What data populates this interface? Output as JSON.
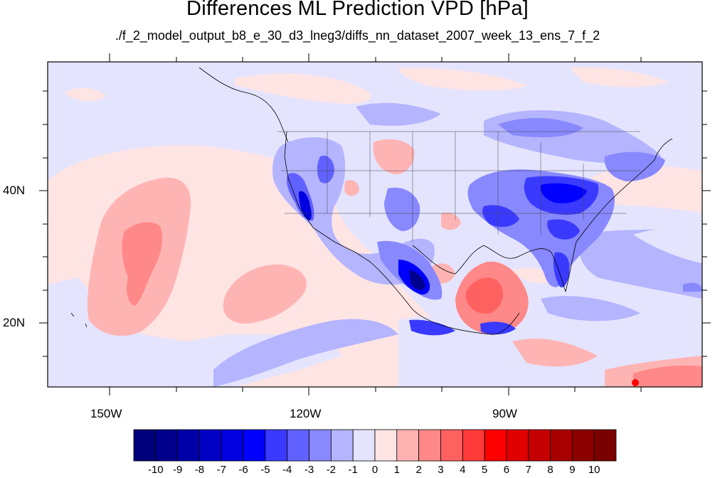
{
  "title": "Differences ML Prediction VPD [hPa]",
  "subtitle": "./f_2_model_output_b8_e_30_d3_lneg3/diffs_nn_dataset_2007_week_13_ens_7_f_2",
  "axes": {
    "lat_labels": [
      "40N",
      "20N"
    ],
    "lon_labels": [
      "150W",
      "120W",
      "90W"
    ]
  },
  "colorbar": {
    "labels": [
      "-10",
      "-9",
      "-8",
      "-7",
      "-6",
      "-5",
      "-4",
      "-3",
      "-2",
      "-1",
      "0",
      "1",
      "2",
      "3",
      "4",
      "5",
      "6",
      "7",
      "8",
      "9",
      "10"
    ],
    "colors": [
      "#00007a",
      "#00008c",
      "#0000a8",
      "#0000c4",
      "#0000e0",
      "#0000ff",
      "#3a3aff",
      "#6161ff",
      "#8888ff",
      "#b4b4ff",
      "#e4e4ff",
      "#ffe4e4",
      "#ffb4b4",
      "#ff8888",
      "#ff6161",
      "#ff3a3a",
      "#ff0000",
      "#e00000",
      "#c40000",
      "#a80000",
      "#8c0000",
      "#7a0000"
    ]
  }
}
